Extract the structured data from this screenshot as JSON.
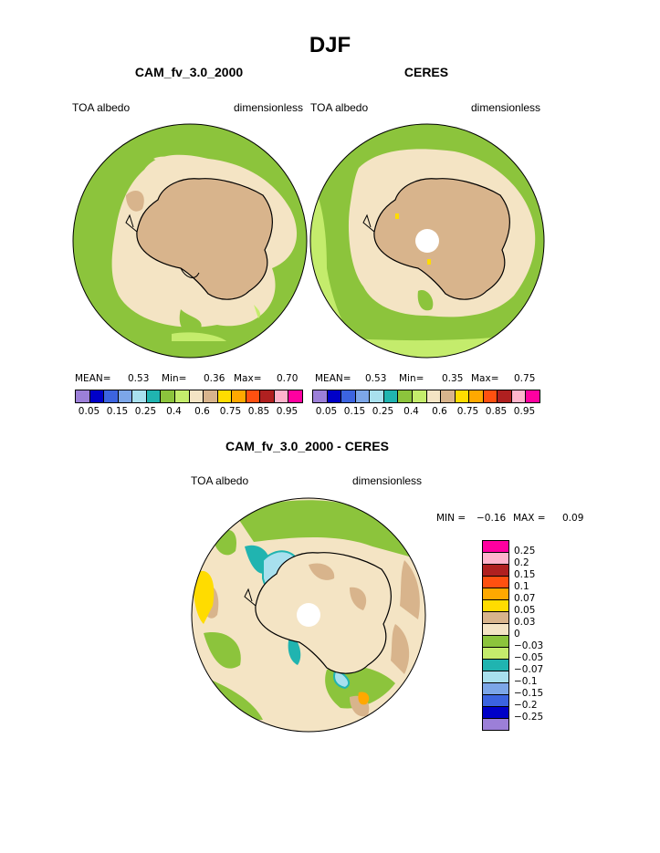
{
  "title": "DJF",
  "panels": [
    {
      "subtitle": "CAM_fv_3.0_2000",
      "left_label": "TOA albedo",
      "right_label": "dimensionless",
      "mean_label": "MEAN=",
      "mean": "0.53",
      "min_label": "Min=",
      "min": "0.36",
      "max_label": "Max=",
      "max": "0.70"
    },
    {
      "subtitle": "CERES",
      "left_label": "TOA albedo",
      "right_label": "dimensionless",
      "mean_label": "MEAN=",
      "mean": "0.53",
      "min_label": "Min=",
      "min": "0.35",
      "max_label": "Max=",
      "max": "0.75"
    }
  ],
  "top_colorbar": {
    "colors": [
      "#9c7fd8",
      "#0000c8",
      "#3c64e0",
      "#7ca6e8",
      "#a8e0ee",
      "#20b4b0",
      "#8cc43c",
      "#c4ec6c",
      "#f4e4c4",
      "#d8b48c",
      "#ffdc00",
      "#ffa800",
      "#ff5010",
      "#b02020",
      "#ffb4cc",
      "#ff00a0"
    ],
    "labels": [
      "0.05",
      "0.15",
      "0.25",
      "0.4",
      "0.6",
      "0.75",
      "0.85",
      "0.95"
    ]
  },
  "diff_panel": {
    "subtitle": "CAM_fv_3.0_2000 - CERES",
    "left_label": "TOA albedo",
    "right_label": "dimensionless",
    "min_label": "MIN =",
    "min": "−0.16",
    "max_label": "MAX =",
    "max": "0.09"
  },
  "diff_colorbar": {
    "colors": [
      "#ff00a0",
      "#ffb4cc",
      "#b02020",
      "#ff5010",
      "#ffa800",
      "#ffdc00",
      "#d8b48c",
      "#f4e4c4",
      "#8cc43c",
      "#c4ec6c",
      "#20b4b0",
      "#a8e0ee",
      "#7ca6e8",
      "#3c64e0",
      "#0000c8",
      "#9c7fd8"
    ],
    "labels": [
      "0.25",
      "0.2",
      "0.15",
      "0.1",
      "0.07",
      "0.05",
      "0.03",
      "0",
      "−0.03",
      "−0.05",
      "−0.07",
      "−0.1",
      "−0.15",
      "−0.2",
      "−0.25"
    ]
  },
  "map_colors": {
    "ocean_green": "#8cc43c",
    "light_green": "#c4ec6c",
    "cream": "#f4e4c4",
    "tan": "#d8b48c",
    "yellow": "#ffdc00",
    "orange": "#ffa800",
    "cyan": "#a8e0ee",
    "teal": "#20b4b0",
    "coast": "#000000",
    "white": "#ffffff"
  }
}
